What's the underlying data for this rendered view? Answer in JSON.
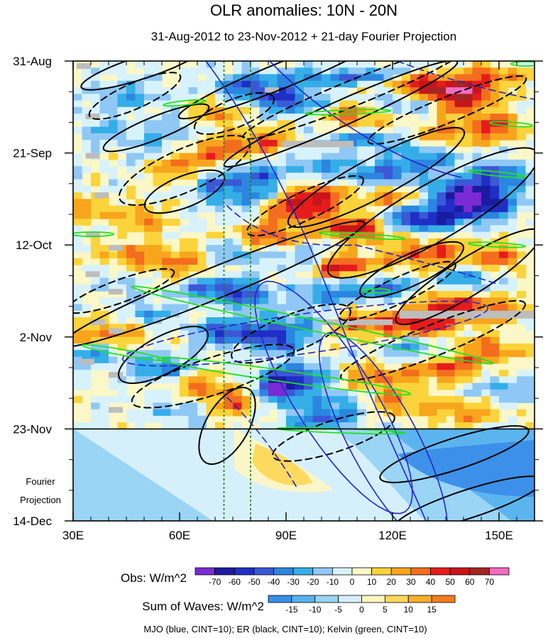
{
  "chart_data": {
    "type": "heatmap",
    "title": "OLR anomalies: 10N - 20N",
    "subtitle": "31-Aug-2012 to 23-Nov-2012 + 21-day Fourier Projection",
    "x_range": [
      30,
      160
    ],
    "x_ticks": [
      30,
      60,
      90,
      120,
      150
    ],
    "x_tick_labels": [
      "30E",
      "60E",
      "90E",
      "120E",
      "150E"
    ],
    "y_range_days": [
      0,
      105
    ],
    "y_ticks_days": [
      0,
      21,
      42,
      63,
      84,
      105
    ],
    "y_tick_labels": [
      "31-Aug",
      "21-Sep",
      "12-Oct",
      "2-Nov",
      "23-Nov",
      "14-Dec"
    ],
    "projection_start_day": 84,
    "projection_label": [
      "Fourier",
      "Projection"
    ],
    "reference_longitudes": [
      72.5,
      80
    ],
    "obs_colorbar": {
      "title": "Obs: W/m^2",
      "levels": [
        "-70",
        "-60",
        "-50",
        "-40",
        "-30",
        "-20",
        "-10",
        "0",
        "10",
        "20",
        "30",
        "40",
        "50",
        "60",
        "70"
      ],
      "colors": [
        "#7a2bd6",
        "#1b1ba0",
        "#1f2ec4",
        "#3b58d6",
        "#2b86e0",
        "#35aee8",
        "#8fc8f5",
        "#d8f2fb",
        "#fbf7c6",
        "#fbd33a",
        "#f7a51d",
        "#f46d1e",
        "#e61c1c",
        "#c8141a",
        "#a52525",
        "#f26bc4"
      ]
    },
    "waves_colorbar": {
      "title": "Sum of Waves: W/m^2",
      "levels": [
        "-15",
        "-10",
        "-5",
        "0",
        "5",
        "10",
        "15"
      ],
      "colors": [
        "#3a8ee8",
        "#58b2ee",
        "#97d3f5",
        "#d6f0fb",
        "#fdf6c4",
        "#fdd85a",
        "#f8ae2d",
        "#f47c1e"
      ]
    },
    "caption": "MJO (blue, CINT=10); ER (black, CINT=10); Kelvin (green, CINT=10)",
    "series": [
      {
        "name": "MJO",
        "color": "#2424c8",
        "contour_interval": 10
      },
      {
        "name": "ER",
        "color": "#000000",
        "contour_interval": 10
      },
      {
        "name": "Kelvin",
        "color": "#22e022",
        "contour_interval": 10
      }
    ]
  }
}
